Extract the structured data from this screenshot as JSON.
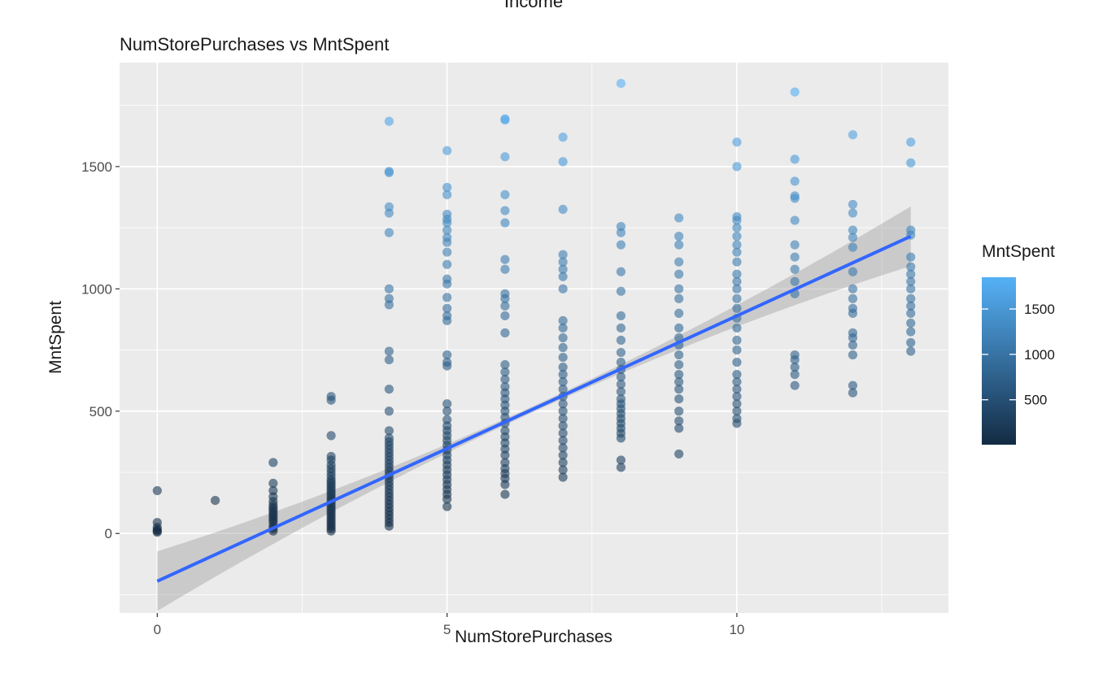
{
  "header_text": "Income",
  "chart_data": {
    "type": "scatter",
    "title": "NumStorePurchases vs MntSpent",
    "xlabel": "NumStorePurchases",
    "ylabel": "MntSpent",
    "xlim": [
      -0.65,
      13.65
    ],
    "ylim": [
      -325,
      1925
    ],
    "x_ticks": [
      0,
      5,
      10
    ],
    "y_ticks": [
      0,
      500,
      1000,
      1500
    ],
    "grid": true,
    "legend": {
      "title": "MntSpent",
      "position": "right",
      "type": "colorbar",
      "range": [
        5,
        1850
      ],
      "breaks": [
        500,
        1000,
        1500
      ],
      "color_low": "#132b43",
      "color_high": "#56b1f7"
    },
    "trend_line": {
      "x": [
        0,
        13
      ],
      "y": [
        -195,
        1215
      ],
      "color": "#3366ff",
      "ci": true
    },
    "series": [
      {
        "values": [
          [
            0,
            5
          ],
          [
            0,
            10
          ],
          [
            0,
            15
          ],
          [
            0,
            25
          ],
          [
            0,
            45
          ],
          [
            0,
            175
          ],
          [
            1,
            135
          ],
          [
            2,
            10
          ],
          [
            2,
            20
          ],
          [
            2,
            30
          ],
          [
            2,
            45
          ],
          [
            2,
            55
          ],
          [
            2,
            65
          ],
          [
            2,
            75
          ],
          [
            2,
            85
          ],
          [
            2,
            95
          ],
          [
            2,
            105
          ],
          [
            2,
            115
          ],
          [
            2,
            130
          ],
          [
            2,
            150
          ],
          [
            2,
            175
          ],
          [
            2,
            205
          ],
          [
            2,
            290
          ],
          [
            3,
            10
          ],
          [
            3,
            20
          ],
          [
            3,
            30
          ],
          [
            3,
            40
          ],
          [
            3,
            50
          ],
          [
            3,
            60
          ],
          [
            3,
            70
          ],
          [
            3,
            80
          ],
          [
            3,
            90
          ],
          [
            3,
            100
          ],
          [
            3,
            110
          ],
          [
            3,
            120
          ],
          [
            3,
            130
          ],
          [
            3,
            140
          ],
          [
            3,
            150
          ],
          [
            3,
            160
          ],
          [
            3,
            170
          ],
          [
            3,
            180
          ],
          [
            3,
            190
          ],
          [
            3,
            200
          ],
          [
            3,
            210
          ],
          [
            3,
            220
          ],
          [
            3,
            235
          ],
          [
            3,
            250
          ],
          [
            3,
            265
          ],
          [
            3,
            280
          ],
          [
            3,
            300
          ],
          [
            3,
            315
          ],
          [
            3,
            400
          ],
          [
            3,
            545
          ],
          [
            3,
            560
          ],
          [
            4,
            30
          ],
          [
            4,
            45
          ],
          [
            4,
            60
          ],
          [
            4,
            75
          ],
          [
            4,
            90
          ],
          [
            4,
            105
          ],
          [
            4,
            120
          ],
          [
            4,
            135
          ],
          [
            4,
            150
          ],
          [
            4,
            165
          ],
          [
            4,
            180
          ],
          [
            4,
            195
          ],
          [
            4,
            210
          ],
          [
            4,
            225
          ],
          [
            4,
            240
          ],
          [
            4,
            255
          ],
          [
            4,
            270
          ],
          [
            4,
            285
          ],
          [
            4,
            300
          ],
          [
            4,
            315
          ],
          [
            4,
            330
          ],
          [
            4,
            345
          ],
          [
            4,
            360
          ],
          [
            4,
            375
          ],
          [
            4,
            390
          ],
          [
            4,
            420
          ],
          [
            4,
            500
          ],
          [
            4,
            590
          ],
          [
            4,
            710
          ],
          [
            4,
            745
          ],
          [
            4,
            935
          ],
          [
            4,
            960
          ],
          [
            4,
            1000
          ],
          [
            4,
            1230
          ],
          [
            4,
            1310
          ],
          [
            4,
            1335
          ],
          [
            4,
            1475
          ],
          [
            4,
            1480
          ],
          [
            4,
            1685
          ],
          [
            5,
            110
          ],
          [
            5,
            140
          ],
          [
            5,
            160
          ],
          [
            5,
            180
          ],
          [
            5,
            200
          ],
          [
            5,
            220
          ],
          [
            5,
            240
          ],
          [
            5,
            260
          ],
          [
            5,
            280
          ],
          [
            5,
            300
          ],
          [
            5,
            320
          ],
          [
            5,
            340
          ],
          [
            5,
            360
          ],
          [
            5,
            380
          ],
          [
            5,
            400
          ],
          [
            5,
            420
          ],
          [
            5,
            440
          ],
          [
            5,
            465
          ],
          [
            5,
            500
          ],
          [
            5,
            530
          ],
          [
            5,
            685
          ],
          [
            5,
            700
          ],
          [
            5,
            730
          ],
          [
            5,
            870
          ],
          [
            5,
            890
          ],
          [
            5,
            920
          ],
          [
            5,
            965
          ],
          [
            5,
            1020
          ],
          [
            5,
            1040
          ],
          [
            5,
            1100
          ],
          [
            5,
            1150
          ],
          [
            5,
            1190
          ],
          [
            5,
            1210
          ],
          [
            5,
            1240
          ],
          [
            5,
            1270
          ],
          [
            5,
            1285
          ],
          [
            5,
            1305
          ],
          [
            5,
            1385
          ],
          [
            5,
            1415
          ],
          [
            5,
            1565
          ],
          [
            6,
            160
          ],
          [
            6,
            200
          ],
          [
            6,
            225
          ],
          [
            6,
            245
          ],
          [
            6,
            265
          ],
          [
            6,
            290
          ],
          [
            6,
            320
          ],
          [
            6,
            345
          ],
          [
            6,
            370
          ],
          [
            6,
            395
          ],
          [
            6,
            420
          ],
          [
            6,
            450
          ],
          [
            6,
            475
          ],
          [
            6,
            500
          ],
          [
            6,
            525
          ],
          [
            6,
            550
          ],
          [
            6,
            575
          ],
          [
            6,
            600
          ],
          [
            6,
            630
          ],
          [
            6,
            660
          ],
          [
            6,
            690
          ],
          [
            6,
            820
          ],
          [
            6,
            890
          ],
          [
            6,
            930
          ],
          [
            6,
            960
          ],
          [
            6,
            980
          ],
          [
            6,
            1080
          ],
          [
            6,
            1120
          ],
          [
            6,
            1270
          ],
          [
            6,
            1320
          ],
          [
            6,
            1385
          ],
          [
            6,
            1540
          ],
          [
            6,
            1690
          ],
          [
            6,
            1695
          ],
          [
            7,
            230
          ],
          [
            7,
            260
          ],
          [
            7,
            290
          ],
          [
            7,
            320
          ],
          [
            7,
            350
          ],
          [
            7,
            380
          ],
          [
            7,
            410
          ],
          [
            7,
            440
          ],
          [
            7,
            470
          ],
          [
            7,
            500
          ],
          [
            7,
            530
          ],
          [
            7,
            560
          ],
          [
            7,
            590
          ],
          [
            7,
            620
          ],
          [
            7,
            650
          ],
          [
            7,
            680
          ],
          [
            7,
            720
          ],
          [
            7,
            760
          ],
          [
            7,
            800
          ],
          [
            7,
            840
          ],
          [
            7,
            870
          ],
          [
            7,
            1000
          ],
          [
            7,
            1050
          ],
          [
            7,
            1080
          ],
          [
            7,
            1110
          ],
          [
            7,
            1140
          ],
          [
            7,
            1325
          ],
          [
            7,
            1520
          ],
          [
            7,
            1620
          ],
          [
            8,
            270
          ],
          [
            8,
            300
          ],
          [
            8,
            390
          ],
          [
            8,
            410
          ],
          [
            8,
            430
          ],
          [
            8,
            450
          ],
          [
            8,
            470
          ],
          [
            8,
            490
          ],
          [
            8,
            510
          ],
          [
            8,
            530
          ],
          [
            8,
            550
          ],
          [
            8,
            580
          ],
          [
            8,
            610
          ],
          [
            8,
            640
          ],
          [
            8,
            670
          ],
          [
            8,
            700
          ],
          [
            8,
            740
          ],
          [
            8,
            790
          ],
          [
            8,
            840
          ],
          [
            8,
            890
          ],
          [
            8,
            990
          ],
          [
            8,
            1070
          ],
          [
            8,
            1180
          ],
          [
            8,
            1230
          ],
          [
            8,
            1255
          ],
          [
            8,
            1840
          ],
          [
            9,
            325
          ],
          [
            9,
            430
          ],
          [
            9,
            460
          ],
          [
            9,
            500
          ],
          [
            9,
            550
          ],
          [
            9,
            590
          ],
          [
            9,
            620
          ],
          [
            9,
            650
          ],
          [
            9,
            690
          ],
          [
            9,
            730
          ],
          [
            9,
            770
          ],
          [
            9,
            800
          ],
          [
            9,
            840
          ],
          [
            9,
            900
          ],
          [
            9,
            960
          ],
          [
            9,
            1000
          ],
          [
            9,
            1060
          ],
          [
            9,
            1110
          ],
          [
            9,
            1180
          ],
          [
            9,
            1215
          ],
          [
            9,
            1290
          ],
          [
            10,
            450
          ],
          [
            10,
            470
          ],
          [
            10,
            500
          ],
          [
            10,
            530
          ],
          [
            10,
            560
          ],
          [
            10,
            590
          ],
          [
            10,
            620
          ],
          [
            10,
            650
          ],
          [
            10,
            700
          ],
          [
            10,
            750
          ],
          [
            10,
            790
          ],
          [
            10,
            840
          ],
          [
            10,
            880
          ],
          [
            10,
            920
          ],
          [
            10,
            960
          ],
          [
            10,
            1000
          ],
          [
            10,
            1030
          ],
          [
            10,
            1060
          ],
          [
            10,
            1110
          ],
          [
            10,
            1150
          ],
          [
            10,
            1180
          ],
          [
            10,
            1215
          ],
          [
            10,
            1250
          ],
          [
            10,
            1280
          ],
          [
            10,
            1295
          ],
          [
            10,
            1500
          ],
          [
            10,
            1600
          ],
          [
            11,
            605
          ],
          [
            11,
            650
          ],
          [
            11,
            680
          ],
          [
            11,
            710
          ],
          [
            11,
            730
          ],
          [
            11,
            980
          ],
          [
            11,
            1030
          ],
          [
            11,
            1080
          ],
          [
            11,
            1130
          ],
          [
            11,
            1180
          ],
          [
            11,
            1280
          ],
          [
            11,
            1370
          ],
          [
            11,
            1380
          ],
          [
            11,
            1440
          ],
          [
            11,
            1530
          ],
          [
            11,
            1805
          ],
          [
            12,
            575
          ],
          [
            12,
            605
          ],
          [
            12,
            730
          ],
          [
            12,
            770
          ],
          [
            12,
            800
          ],
          [
            12,
            820
          ],
          [
            12,
            900
          ],
          [
            12,
            920
          ],
          [
            12,
            960
          ],
          [
            12,
            1000
          ],
          [
            12,
            1070
          ],
          [
            12,
            1170
          ],
          [
            12,
            1210
          ],
          [
            12,
            1240
          ],
          [
            12,
            1310
          ],
          [
            12,
            1345
          ],
          [
            12,
            1630
          ],
          [
            13,
            745
          ],
          [
            13,
            780
          ],
          [
            13,
            825
          ],
          [
            13,
            860
          ],
          [
            13,
            900
          ],
          [
            13,
            930
          ],
          [
            13,
            960
          ],
          [
            13,
            1000
          ],
          [
            13,
            1030
          ],
          [
            13,
            1060
          ],
          [
            13,
            1090
          ],
          [
            13,
            1130
          ],
          [
            13,
            1220
          ],
          [
            13,
            1240
          ],
          [
            13,
            1515
          ],
          [
            13,
            1600
          ]
        ]
      }
    ]
  }
}
